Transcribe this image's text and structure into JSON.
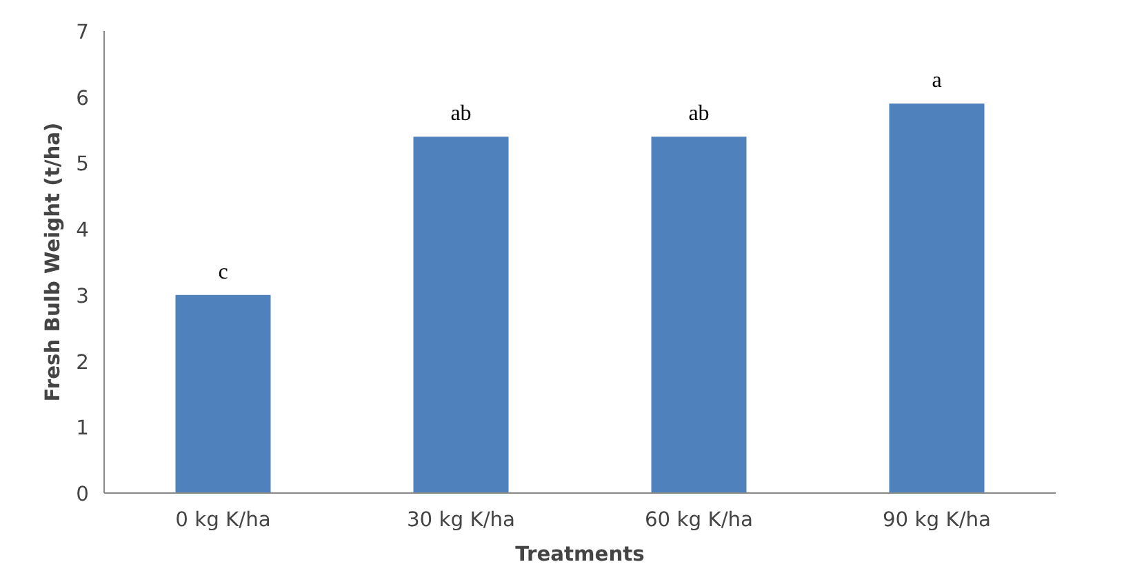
{
  "chart_data": {
    "type": "bar",
    "xlabel": "Treatments",
    "ylabel": "Fresh Bulb Weight (t/ha)",
    "categories": [
      "0 kg K/ha",
      "30 kg K/ha",
      "60 kg K/ha",
      "90 kg K/ha"
    ],
    "values": [
      3.0,
      5.4,
      5.4,
      5.9
    ],
    "color": "#4f81bd",
    "ylim": [
      0,
      7
    ],
    "yticks": [
      0,
      1,
      2,
      3,
      4,
      5,
      6,
      7
    ],
    "grid": false,
    "annotations": [
      {
        "text": "c",
        "x": "0 kg K/ha",
        "y": 3.0
      },
      {
        "text": "ab",
        "x": "30 kg K/ha",
        "y": 5.4
      },
      {
        "text": "ab",
        "x": "60 kg K/ha",
        "y": 5.4
      },
      {
        "text": "a",
        "x": "90 kg K/ha",
        "y": 5.9
      }
    ]
  }
}
